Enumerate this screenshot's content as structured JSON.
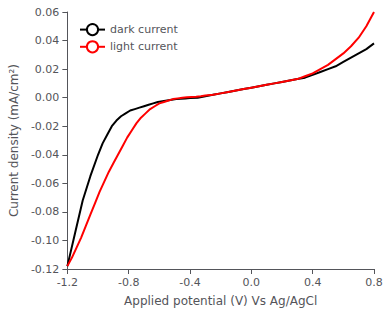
{
  "chart_data": {
    "type": "line",
    "xlabel": "Applied potential (V) Vs Ag/AgCl",
    "ylabel": "Current density (mA/cm²)",
    "xlim": [
      -1.2,
      0.8
    ],
    "ylim": [
      -0.12,
      0.06
    ],
    "xticks": [
      -1.2,
      -0.8,
      -0.4,
      {
        "value": 0.0,
        "label": "0.0"
      },
      0.4,
      0.8
    ],
    "yticks": [
      -0.12,
      {
        "value": -0.1,
        "label": "-0.10"
      },
      -0.08,
      -0.06,
      -0.04,
      -0.02,
      {
        "value": 0.0,
        "label": "0.00"
      },
      0.02,
      0.04,
      0.06
    ],
    "grid": false,
    "legend": "upper left",
    "series": [
      {
        "name": "dark current",
        "color": "#000000",
        "x": [
          -1.2,
          -1.15,
          -1.1,
          -1.05,
          -1.0,
          -0.97,
          -0.94,
          -0.91,
          -0.88,
          -0.85,
          -0.82,
          -0.79,
          -0.76,
          -0.73,
          -0.7,
          -0.67,
          -0.64,
          -0.61,
          -0.58,
          -0.55,
          -0.52,
          -0.49,
          -0.46,
          -0.43,
          -0.4,
          -0.35,
          -0.3,
          -0.25,
          -0.2,
          -0.15,
          -0.1,
          -0.05,
          0.0,
          0.05,
          0.1,
          0.15,
          0.2,
          0.25,
          0.3,
          0.35,
          0.4,
          0.45,
          0.5,
          0.55,
          0.6,
          0.65,
          0.7,
          0.75,
          0.8
        ],
        "values": [
          -0.118,
          -0.095,
          -0.072,
          -0.055,
          -0.04,
          -0.032,
          -0.026,
          -0.02,
          -0.016,
          -0.013,
          -0.011,
          -0.009,
          -0.008,
          -0.007,
          -0.006,
          -0.005,
          -0.004,
          -0.003,
          -0.0025,
          -0.002,
          -0.0015,
          -0.001,
          -0.0008,
          -0.0005,
          -0.0003,
          0.0,
          0.001,
          0.002,
          0.003,
          0.004,
          0.005,
          0.006,
          0.007,
          0.008,
          0.009,
          0.01,
          0.011,
          0.012,
          0.013,
          0.014,
          0.016,
          0.018,
          0.02,
          0.022,
          0.025,
          0.028,
          0.031,
          0.034,
          0.038
        ]
      },
      {
        "name": "light current",
        "color": "#ff0000",
        "x": [
          -1.2,
          -1.17,
          -1.14,
          -1.11,
          -1.08,
          -1.05,
          -1.02,
          -0.99,
          -0.96,
          -0.93,
          -0.9,
          -0.87,
          -0.84,
          -0.81,
          -0.78,
          -0.75,
          -0.72,
          -0.69,
          -0.66,
          -0.63,
          -0.6,
          -0.57,
          -0.54,
          -0.51,
          -0.48,
          -0.45,
          -0.42,
          -0.39,
          -0.36,
          -0.33,
          -0.3,
          -0.25,
          -0.2,
          -0.15,
          -0.1,
          -0.05,
          0.0,
          0.05,
          0.1,
          0.15,
          0.2,
          0.25,
          0.3,
          0.35,
          0.4,
          0.45,
          0.5,
          0.55,
          0.6,
          0.65,
          0.7,
          0.75,
          0.8
        ],
        "values": [
          -0.118,
          -0.112,
          -0.105,
          -0.098,
          -0.09,
          -0.082,
          -0.074,
          -0.066,
          -0.059,
          -0.052,
          -0.046,
          -0.04,
          -0.034,
          -0.028,
          -0.023,
          -0.018,
          -0.014,
          -0.011,
          -0.008,
          -0.006,
          -0.004,
          -0.003,
          -0.002,
          -0.001,
          -0.0005,
          0.0,
          0.0003,
          0.0005,
          0.0007,
          0.001,
          0.0015,
          0.002,
          0.003,
          0.004,
          0.005,
          0.006,
          0.007,
          0.008,
          0.009,
          0.01,
          0.011,
          0.012,
          0.013,
          0.015,
          0.017,
          0.02,
          0.023,
          0.027,
          0.031,
          0.036,
          0.042,
          0.05,
          0.06
        ]
      }
    ]
  }
}
